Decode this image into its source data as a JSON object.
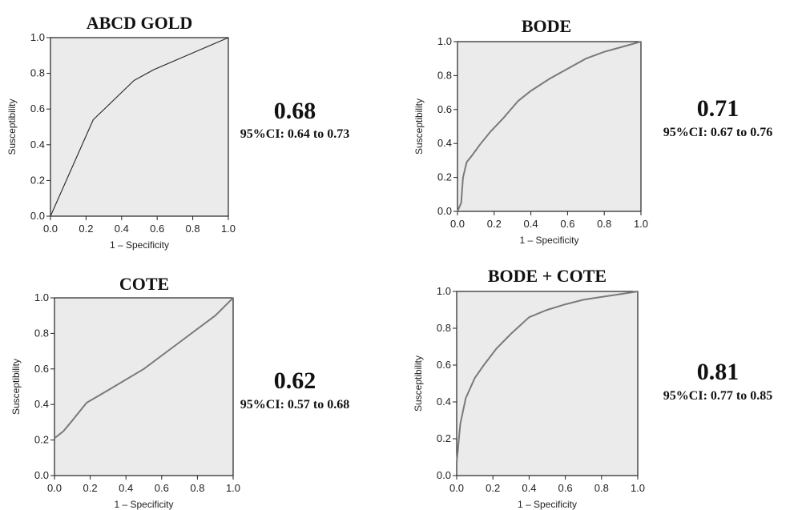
{
  "chart_data": [
    {
      "type": "line",
      "title": "ABCD GOLD",
      "xlabel": "1 – Specificity",
      "ylabel": "Susceptibility",
      "xlim": [
        0,
        1
      ],
      "ylim": [
        0,
        1
      ],
      "xticks": [
        "0.0",
        "0.2",
        "0.4",
        "0.6",
        "0.8",
        "1.0"
      ],
      "yticks": [
        "0.0",
        "0.2",
        "0.4",
        "0.6",
        "0.8",
        "1.0"
      ],
      "x": [
        0,
        0.24,
        0.47,
        0.58,
        1.0
      ],
      "y": [
        0,
        0.54,
        0.76,
        0.82,
        1.0
      ],
      "auc": "0.68",
      "ci": "95%CI: 0.64 to 0.73",
      "grid": false
    },
    {
      "type": "line",
      "title": "BODE",
      "xlabel": "1 – Specificity",
      "ylabel": "Susceptibility",
      "xlim": [
        0,
        1
      ],
      "ylim": [
        0,
        1
      ],
      "xticks": [
        "0.0",
        "0.2",
        "0.4",
        "0.6",
        "0.8",
        "1.0"
      ],
      "yticks": [
        "0.0",
        "0.2",
        "0.4",
        "0.6",
        "0.8",
        "1.0"
      ],
      "x": [
        0,
        0.02,
        0.03,
        0.05,
        0.08,
        0.12,
        0.18,
        0.25,
        0.33,
        0.4,
        0.5,
        0.6,
        0.7,
        0.8,
        0.9,
        1.0
      ],
      "y": [
        0,
        0.05,
        0.2,
        0.29,
        0.33,
        0.39,
        0.47,
        0.55,
        0.65,
        0.71,
        0.78,
        0.84,
        0.9,
        0.94,
        0.97,
        1.0
      ],
      "auc": "0.71",
      "ci": "95%CI: 0.67 to 0.76",
      "grid": false
    },
    {
      "type": "line",
      "title": "COTE",
      "xlabel": "1 – Specificity",
      "ylabel": "Susceptibility",
      "xlim": [
        0,
        1
      ],
      "ylim": [
        0,
        1
      ],
      "xticks": [
        "0.0",
        "0.2",
        "0.4",
        "0.6",
        "0.8",
        "1.0"
      ],
      "yticks": [
        "0.0",
        "0.2",
        "0.4",
        "0.6",
        "0.8",
        "1.0"
      ],
      "x": [
        0,
        0.05,
        0.1,
        0.18,
        0.3,
        0.5,
        0.7,
        0.9,
        1.0
      ],
      "y": [
        0.21,
        0.25,
        0.31,
        0.41,
        0.48,
        0.6,
        0.75,
        0.9,
        1.0
      ],
      "auc": "0.62",
      "ci": "95%CI: 0.57 to 0.68",
      "grid": false
    },
    {
      "type": "line",
      "title": "BODE + COTE",
      "xlabel": "1 – Specificity",
      "ylabel": "Susceptibility",
      "xlim": [
        0,
        1
      ],
      "ylim": [
        0,
        1
      ],
      "xticks": [
        "0.0",
        "0.2",
        "0.4",
        "0.6",
        "0.8",
        "1.0"
      ],
      "yticks": [
        "0.0",
        "0.2",
        "0.4",
        "0.6",
        "0.8",
        "1.0"
      ],
      "x": [
        0,
        0.02,
        0.05,
        0.1,
        0.15,
        0.22,
        0.3,
        0.4,
        0.5,
        0.6,
        0.7,
        0.8,
        0.9,
        1.0
      ],
      "y": [
        0.07,
        0.28,
        0.42,
        0.53,
        0.6,
        0.69,
        0.77,
        0.86,
        0.9,
        0.93,
        0.955,
        0.97,
        0.985,
        1.0
      ],
      "auc": "0.81",
      "ci": "95%CI: 0.77 to 0.85",
      "grid": false
    }
  ]
}
